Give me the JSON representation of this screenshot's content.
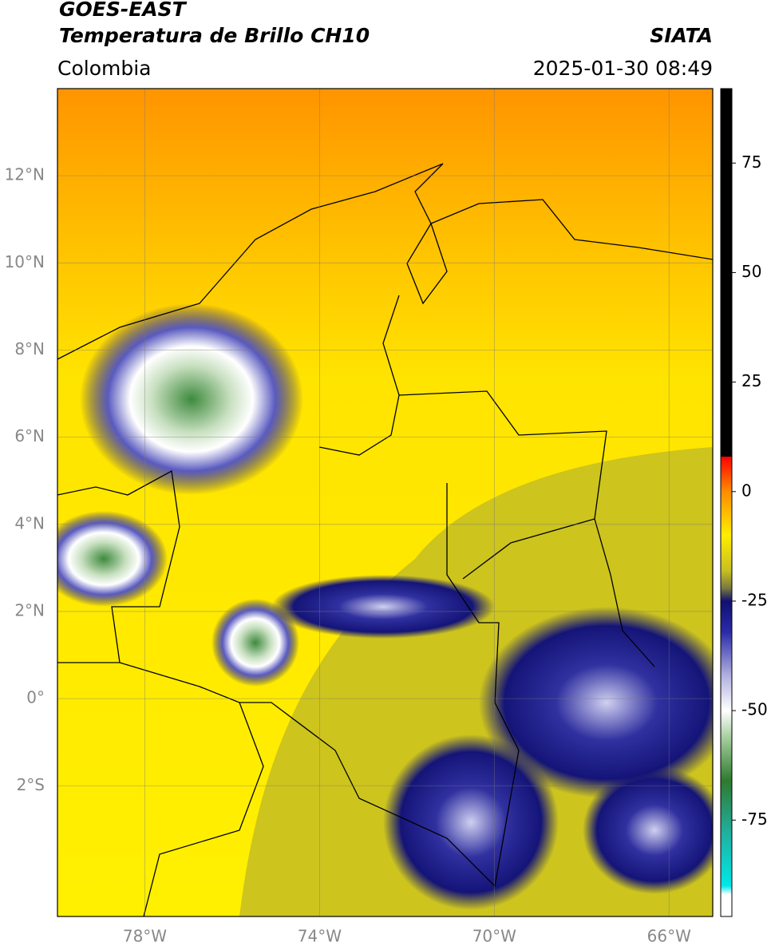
{
  "header": {
    "title": "GOES-EAST",
    "subtitle": "Temperatura de Brillo CH10",
    "source": "SIATA",
    "region": "Colombia",
    "datetime": "2025-01-30 08:49"
  },
  "map": {
    "xlim": [
      -80,
      -65
    ],
    "ylim": [
      -5,
      14
    ],
    "xticks": [
      {
        "value": -78,
        "label": "78°W"
      },
      {
        "value": -74,
        "label": "74°W"
      },
      {
        "value": -70,
        "label": "70°W"
      },
      {
        "value": -66,
        "label": "66°W"
      }
    ],
    "yticks": [
      {
        "value": 12,
        "label": "12°N"
      },
      {
        "value": 10,
        "label": "10°N"
      },
      {
        "value": 8,
        "label": "8°N"
      },
      {
        "value": 6,
        "label": "6°N"
      },
      {
        "value": 4,
        "label": "4°N"
      },
      {
        "value": 2,
        "label": "2°N"
      },
      {
        "value": 0,
        "label": "0°"
      },
      {
        "value": -2,
        "label": "2°S"
      }
    ],
    "grid": true
  },
  "colorbar": {
    "lim": [
      -97,
      92
    ],
    "ticks": [
      75,
      50,
      25,
      0,
      -25,
      -50,
      -75
    ],
    "stops": [
      {
        "value": 92,
        "color": "#000000"
      },
      {
        "value": 8,
        "color": "#000000"
      },
      {
        "value": 8,
        "color": "#ff0000"
      },
      {
        "value": 0,
        "color": "#ff8c00"
      },
      {
        "value": -10,
        "color": "#ffee00"
      },
      {
        "value": -18,
        "color": "#c8c020"
      },
      {
        "value": -22,
        "color": "#7a7a40"
      },
      {
        "value": -25,
        "color": "#101070"
      },
      {
        "value": -32,
        "color": "#2a2aa8"
      },
      {
        "value": -42,
        "color": "#b0b0e0"
      },
      {
        "value": -50,
        "color": "#ffffff"
      },
      {
        "value": -56,
        "color": "#a8d0a0"
      },
      {
        "value": -66,
        "color": "#2e7a2e"
      },
      {
        "value": -78,
        "color": "#20b0a0"
      },
      {
        "value": -90,
        "color": "#00e8e8"
      },
      {
        "value": -92,
        "color": "#ffffff"
      },
      {
        "value": -97,
        "color": "#ffffff"
      }
    ]
  }
}
